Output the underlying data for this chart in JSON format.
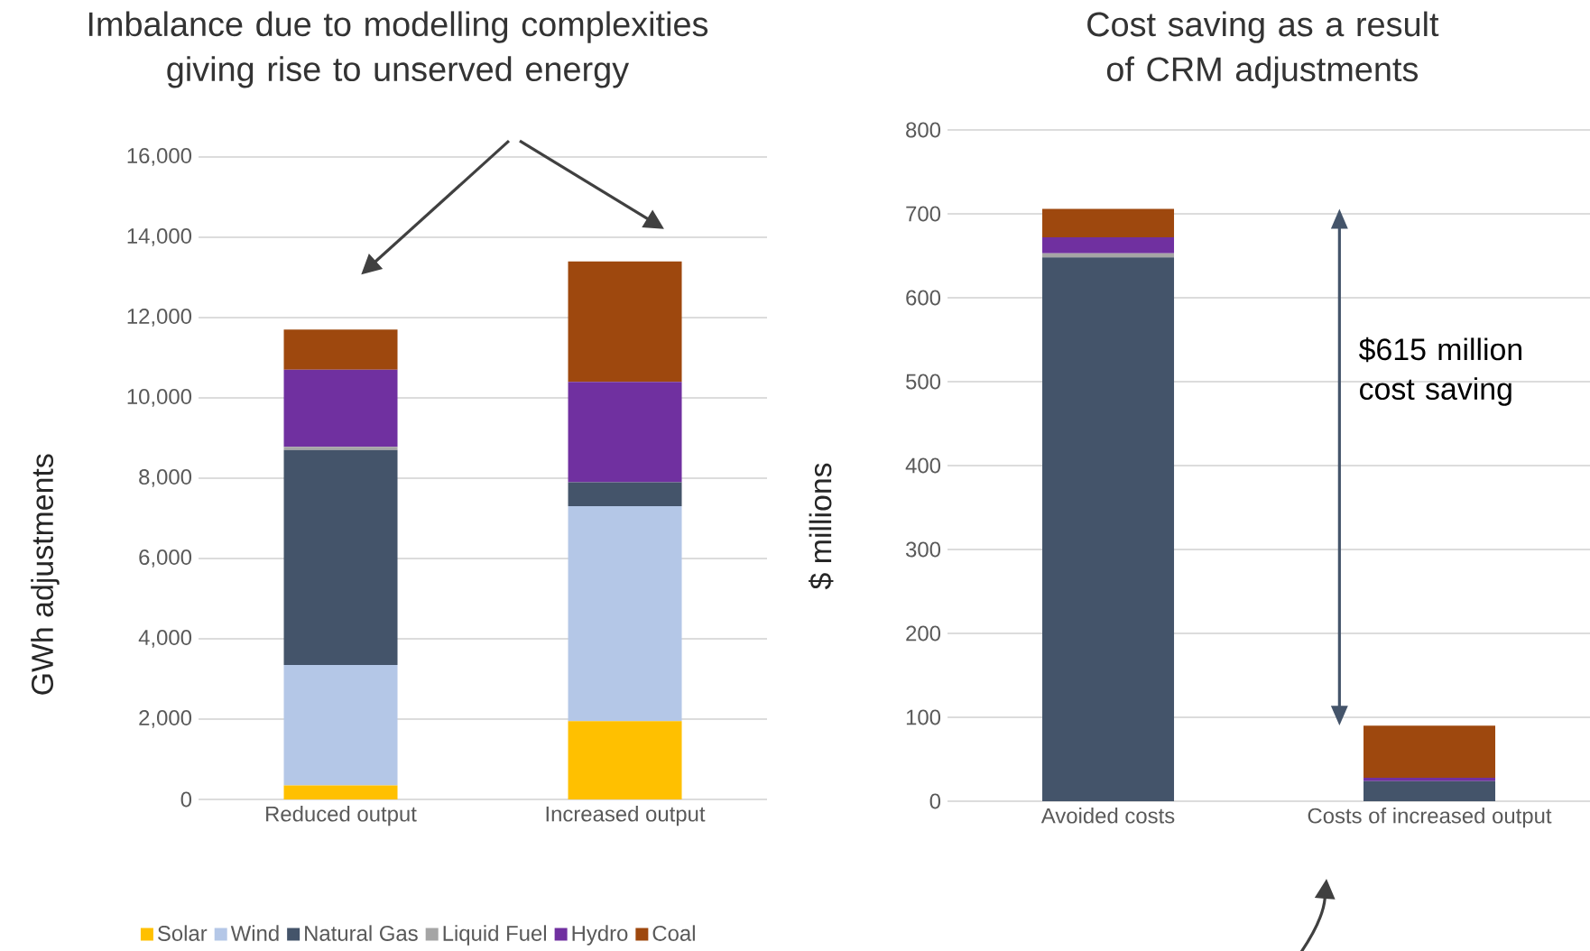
{
  "chart_data": [
    {
      "type": "bar",
      "title": "Imbalance due to modelling complexities giving rise to unserved energy",
      "ylabel": "GWh adjustments",
      "categories": [
        "Reduced output",
        "Increased output"
      ],
      "stacked": true,
      "grid": "y",
      "legend": "bottom",
      "ylim": [
        0,
        16000
      ],
      "yticks": [
        {
          "value": 0,
          "label": "0"
        },
        {
          "value": 2000,
          "label": "2,000"
        },
        {
          "value": 4000,
          "label": "4,000"
        },
        {
          "value": 6000,
          "label": "6,000"
        },
        {
          "value": 8000,
          "label": "8,000"
        },
        {
          "value": 10000,
          "label": "10,000"
        },
        {
          "value": 12000,
          "label": "12,000"
        },
        {
          "value": 14000,
          "label": "14,000"
        },
        {
          "value": 16000,
          "label": "16,000"
        }
      ],
      "series": [
        {
          "name": "Solar",
          "color": "#ffc000",
          "values": [
            350,
            1950
          ]
        },
        {
          "name": "Wind",
          "color": "#b4c7e7",
          "values": [
            3000,
            5350
          ]
        },
        {
          "name": "Natural Gas",
          "color": "#44546a",
          "values": [
            5350,
            600
          ]
        },
        {
          "name": "Liquid Fuel",
          "color": "#a5a5a5",
          "values": [
            80,
            0
          ]
        },
        {
          "name": "Hydro",
          "color": "#7030a0",
          "values": [
            1920,
            2500
          ]
        },
        {
          "name": "Coal",
          "color": "#9e480e",
          "values": [
            1000,
            3000
          ]
        }
      ]
    },
    {
      "type": "bar",
      "title": "Cost saving as a result of CRM adjustments",
      "ylabel": "$ millions",
      "categories": [
        "Avoided costs",
        "Costs of increased output"
      ],
      "stacked": true,
      "grid": "y",
      "ylim": [
        0,
        800
      ],
      "yticks": [
        0,
        100,
        200,
        300,
        400,
        500,
        600,
        700,
        800
      ],
      "annotations": [
        "$615 million cost saving"
      ],
      "series": [
        {
          "color": "#44546a",
          "values": [
            648,
            24
          ]
        },
        {
          "color": "#a5a5a5",
          "values": [
            5,
            0
          ]
        },
        {
          "color": "#7030a0",
          "values": [
            19,
            4
          ]
        },
        {
          "color": "#9e480e",
          "values": [
            34,
            62
          ]
        }
      ]
    }
  ]
}
